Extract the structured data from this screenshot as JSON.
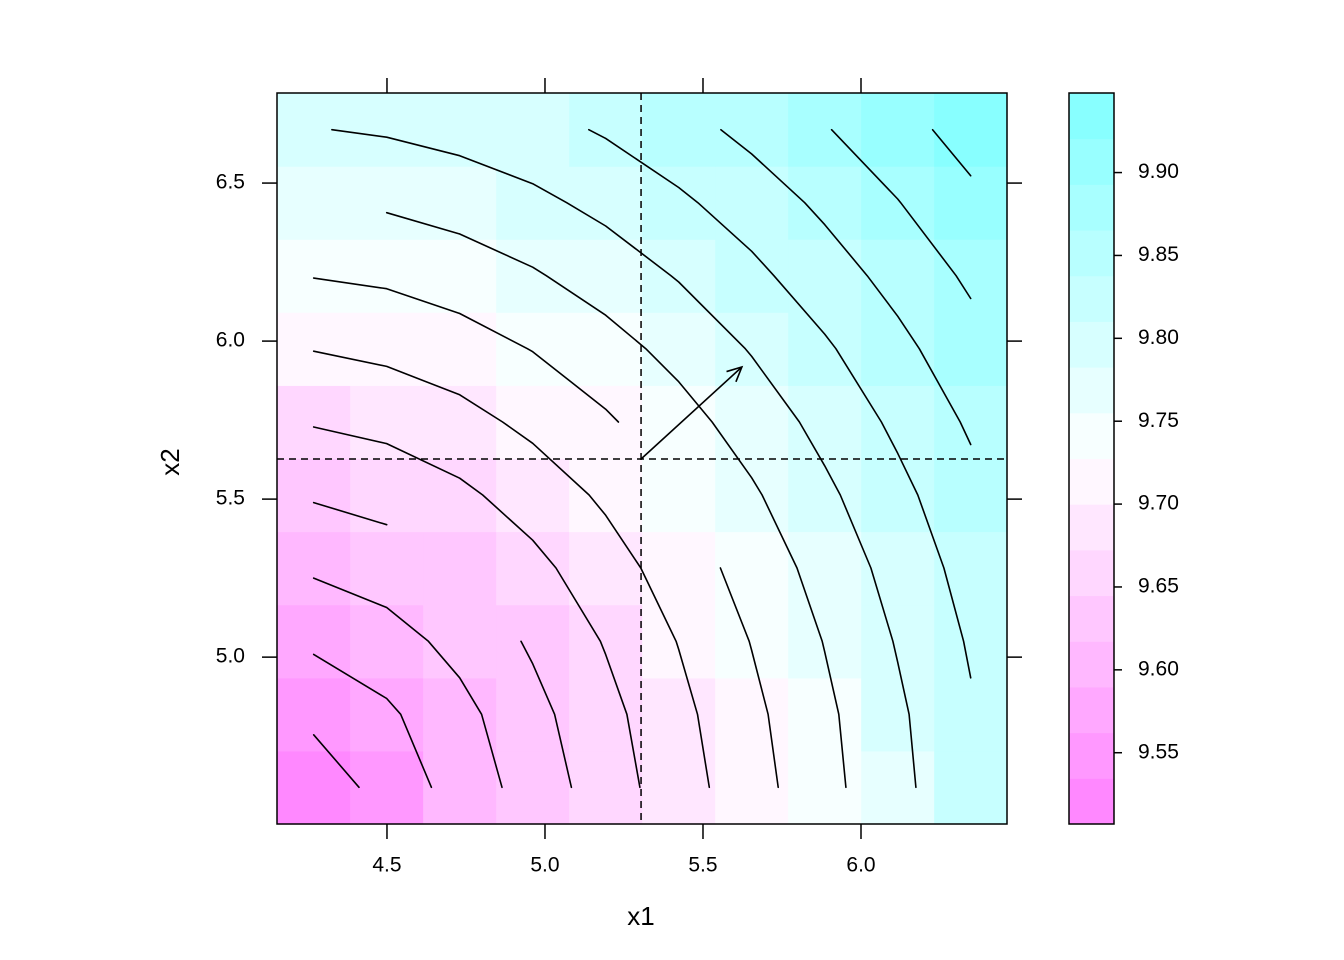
{
  "chart_data": {
    "type": "levelplot",
    "x_label": "x1",
    "y_label": "x2",
    "x": [
      4.268,
      4.499,
      4.73,
      4.961,
      5.192,
      5.423,
      5.654,
      5.885,
      6.116,
      6.347
    ],
    "y": [
      4.588,
      4.819,
      5.05,
      5.282,
      5.513,
      5.744,
      5.976,
      6.207,
      6.438,
      6.669
    ],
    "z": [
      [
        9.532,
        9.561,
        9.592,
        9.623,
        9.655,
        9.687,
        9.718,
        9.751,
        9.782,
        9.814
      ],
      [
        9.557,
        9.575,
        9.601,
        9.631,
        9.661,
        9.692,
        9.723,
        9.754,
        9.785,
        9.817
      ],
      [
        9.585,
        9.598,
        9.619,
        9.644,
        9.672,
        9.701,
        9.731,
        9.761,
        9.792,
        9.823
      ],
      [
        9.614,
        9.624,
        9.64,
        9.662,
        9.687,
        9.714,
        9.742,
        9.771,
        9.801,
        9.831
      ],
      [
        9.643,
        9.651,
        9.664,
        9.683,
        9.705,
        9.73,
        9.756,
        9.784,
        9.812,
        9.841
      ],
      [
        9.672,
        9.678,
        9.69,
        9.707,
        9.726,
        9.749,
        9.773,
        9.799,
        9.826,
        9.854
      ],
      [
        9.701,
        9.707,
        9.717,
        9.731,
        9.749,
        9.769,
        9.792,
        9.816,
        9.842,
        9.869
      ],
      [
        9.731,
        9.735,
        9.744,
        9.757,
        9.773,
        9.792,
        9.813,
        9.836,
        9.86,
        9.885
      ],
      [
        9.76,
        9.764,
        9.772,
        9.783,
        9.798,
        9.815,
        9.834,
        9.856,
        9.879,
        9.903
      ],
      [
        9.789,
        9.793,
        9.8,
        9.81,
        9.823,
        9.839,
        9.858,
        9.878,
        9.899,
        9.922
      ]
    ],
    "xlim": [
      4.152,
      6.462
    ],
    "ylim": [
      4.472,
      6.785
    ],
    "xticks": [
      4.5,
      {
        "value": 5,
        "label": "5.0"
      },
      5.5,
      {
        "value": 6,
        "label": "6.0"
      }
    ],
    "yticks": [
      {
        "value": 5,
        "label": "5.0"
      },
      5.5,
      {
        "value": 6,
        "label": "6.0"
      },
      6.5
    ],
    "zlim": [
      9.507,
      9.948
    ],
    "zticks": [
      9.55,
      {
        "value": 9.6,
        "label": "9.60"
      },
      9.65,
      {
        "value": 9.7,
        "label": "9.70"
      },
      9.75,
      {
        "value": 9.8,
        "label": "9.80"
      },
      9.85,
      {
        "value": 9.9,
        "label": "9.90"
      }
    ],
    "colors": [
      "#FF80FF",
      "#FFFFFF",
      "#80FFFF"
    ],
    "contour_levels": [
      9.52,
      9.55,
      9.58,
      9.61,
      9.64,
      9.67,
      9.7,
      9.73,
      9.76,
      9.79,
      9.82,
      9.85,
      9.88,
      9.91
    ],
    "reference_lines": {
      "x": 5.304,
      "y": 5.627
    },
    "arrow": {
      "x": [
        5.304,
        5.623
      ],
      "y": [
        5.627,
        5.918
      ]
    }
  }
}
